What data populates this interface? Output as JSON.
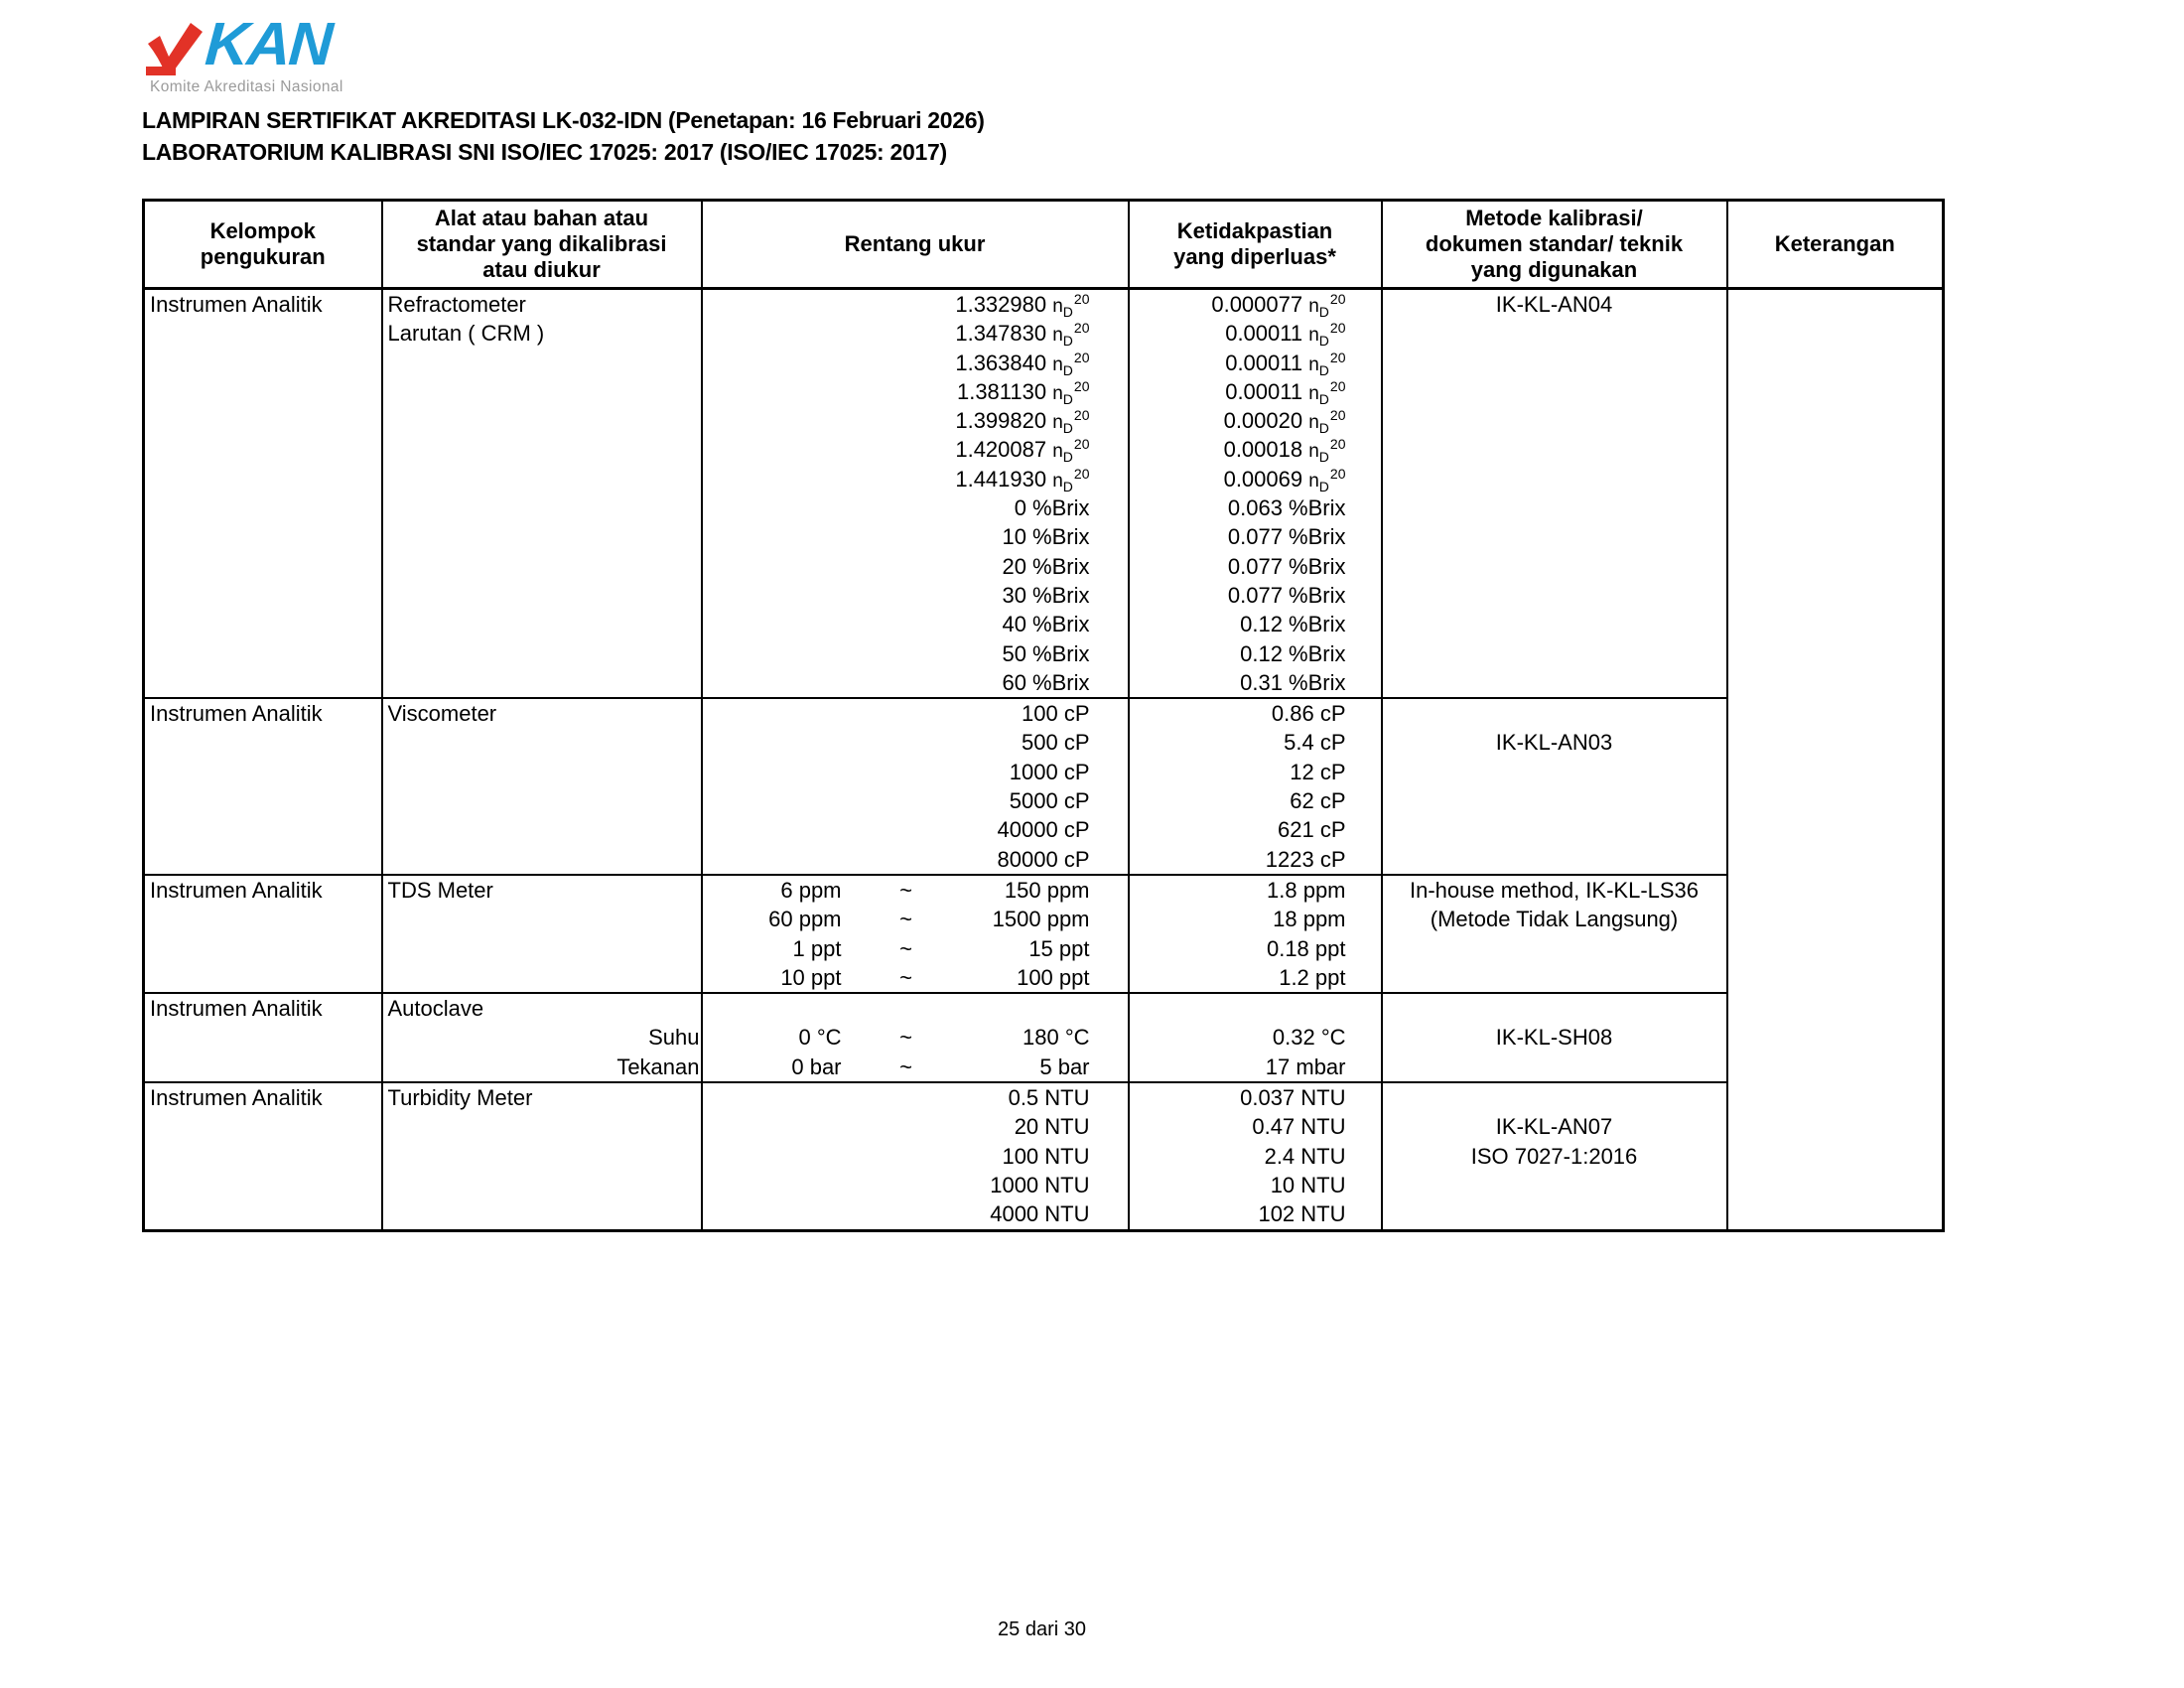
{
  "logo": {
    "kan_text": "KAN",
    "subtitle": "Komite Akreditasi Nasional",
    "check_color": "#E23227",
    "kan_color": "#1F9BD7",
    "subtitle_color": "#9B9B9B"
  },
  "title_line1": "LAMPIRAN SERTIFIKAT AKREDITASI LK-032-IDN (Penetapan: 16 Februari 2026)",
  "title_line2": "LABORATORIUM KALIBRASI SNI ISO/IEC 17025: 2017 (ISO/IEC 17025: 2017)",
  "table": {
    "headers": [
      "Kelompok\npengukuran",
      "Alat atau bahan atau\nstandar yang dikalibrasi\natau diukur",
      "Rentang ukur",
      "Ketidakpastian\nyang diperluas*",
      "Metode kalibrasi/\ndokumen standar/ teknik\nyang digunakan",
      "Keterangan"
    ],
    "keterangan": "",
    "sections": [
      {
        "kelompok": "Instrumen Analitik",
        "lines": [
          {
            "a": "Refractometer",
            "v": "1.332980",
            "u": "nD20",
            "uv": "0.000077",
            "uu": "nD20",
            "m": "IK-KL-AN04"
          },
          {
            "a": "Larutan ( CRM )",
            "v": "1.347830",
            "u": "nD20",
            "uv": "0.00011",
            "uu": "nD20"
          },
          {
            "v": "1.363840",
            "u": "nD20",
            "uv": "0.00011",
            "uu": "nD20"
          },
          {
            "v": "1.381130",
            "u": "nD20",
            "uv": "0.00011",
            "uu": "nD20"
          },
          {
            "v": "1.399820",
            "u": "nD20",
            "uv": "0.00020",
            "uu": "nD20"
          },
          {
            "v": "1.420087",
            "u": "nD20",
            "uv": "0.00018",
            "uu": "nD20"
          },
          {
            "v": "1.441930",
            "u": "nD20",
            "uv": "0.00069",
            "uu": "nD20"
          },
          {
            "v": "0",
            "u": "%Brix",
            "uv": "0.063",
            "uu": "%Brix"
          },
          {
            "v": "10",
            "u": "%Brix",
            "uv": "0.077",
            "uu": "%Brix"
          },
          {
            "v": "20",
            "u": "%Brix",
            "uv": "0.077",
            "uu": "%Brix"
          },
          {
            "v": "30",
            "u": "%Brix",
            "uv": "0.077",
            "uu": "%Brix"
          },
          {
            "v": "40",
            "u": "%Brix",
            "uv": "0.12",
            "uu": "%Brix"
          },
          {
            "v": "50",
            "u": "%Brix",
            "uv": "0.12",
            "uu": "%Brix"
          },
          {
            "v": "60",
            "u": "%Brix",
            "uv": "0.31",
            "uu": "%Brix"
          }
        ]
      },
      {
        "kelompok": "Instrumen Analitik",
        "lines": [
          {
            "a": "Viscometer",
            "v": "100",
            "u": "cP",
            "uv": "0.86",
            "uu": "cP"
          },
          {
            "v": "500",
            "u": "cP",
            "uv": "5.4",
            "uu": "cP",
            "m": "IK-KL-AN03"
          },
          {
            "v": "1000",
            "u": "cP",
            "uv": "12",
            "uu": "cP"
          },
          {
            "v": "5000",
            "u": "cP",
            "uv": "62",
            "uu": "cP"
          },
          {
            "v": "40000",
            "u": "cP",
            "uv": "621",
            "uu": "cP"
          },
          {
            "v": "80000",
            "u": "cP",
            "uv": "1223",
            "uu": "cP"
          }
        ]
      },
      {
        "kelompok": "Instrumen Analitik",
        "lines": [
          {
            "a": "TDS Meter",
            "v1": "6",
            "u1": "ppm",
            "v2": "150",
            "u2": "ppm",
            "uv": "1.8",
            "uu": "ppm",
            "m": "In-house method, IK-KL-LS36"
          },
          {
            "v1": "60",
            "u1": "ppm",
            "v2": "1500",
            "u2": "ppm",
            "uv": "18",
            "uu": "ppm",
            "m": "(Metode Tidak Langsung)"
          },
          {
            "v1": "1",
            "u1": "ppt",
            "v2": "15",
            "u2": "ppt",
            "uv": "0.18",
            "uu": "ppt"
          },
          {
            "v1": "10",
            "u1": "ppt",
            "v2": "100",
            "u2": "ppt",
            "uv": "1.2",
            "uu": "ppt"
          }
        ]
      },
      {
        "kelompok": "Instrumen Analitik",
        "lines": [
          {
            "a": "Autoclave"
          },
          {
            "ar": "Suhu",
            "v1": "0",
            "u1": "°C",
            "v2": "180",
            "u2": "°C",
            "uv": "0.32",
            "uu": "°C",
            "m": "IK-KL-SH08"
          },
          {
            "ar": "Tekanan",
            "v1": "0",
            "u1": "bar",
            "v2": "5",
            "u2": "bar",
            "uv": "17",
            "uu": "mbar"
          }
        ]
      },
      {
        "kelompok": "Instrumen Analitik",
        "lines": [
          {
            "a": "Turbidity Meter",
            "v": "0.5",
            "u": "NTU",
            "uv": "0.037",
            "uu": "NTU"
          },
          {
            "v": "20",
            "u": "NTU",
            "uv": "0.47",
            "uu": "NTU",
            "m": "IK-KL-AN07"
          },
          {
            "v": "100",
            "u": "NTU",
            "uv": "2.4",
            "uu": "NTU",
            "m": "ISO 7027-1:2016"
          },
          {
            "v": "1000",
            "u": "NTU",
            "uv": "10",
            "uu": "NTU"
          },
          {
            "v": "4000",
            "u": "NTU",
            "uv": "102",
            "uu": "NTU"
          }
        ]
      }
    ]
  },
  "footer": {
    "page": "25 dari 30"
  }
}
